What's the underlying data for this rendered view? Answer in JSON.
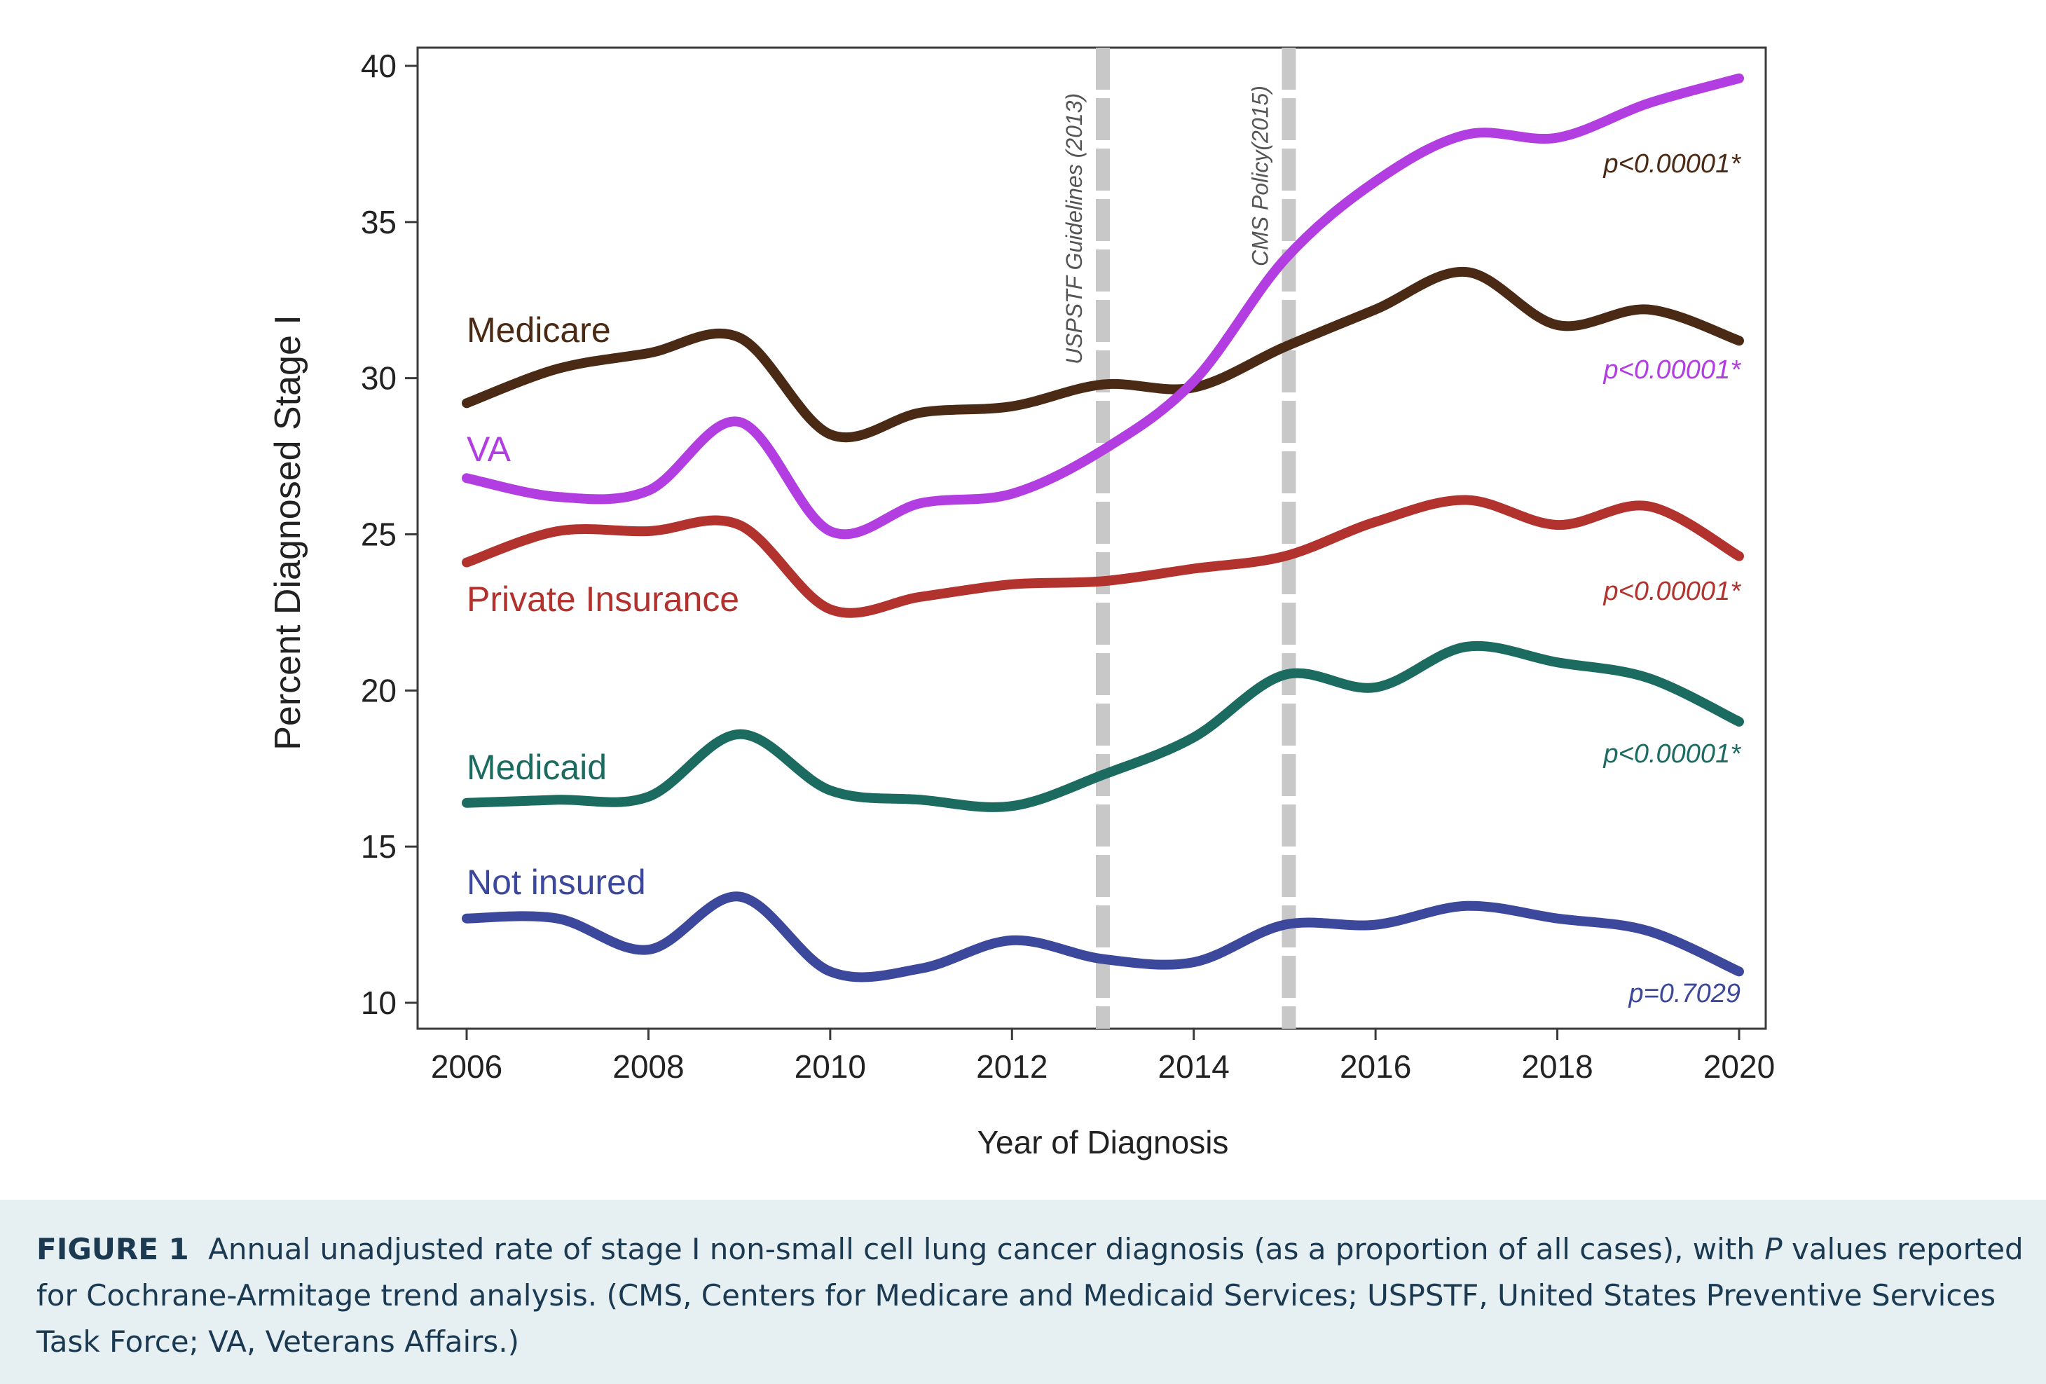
{
  "chart_data": {
    "type": "line",
    "xlabel": "Year of Diagnosis",
    "ylabel": "Percent Diagnosed Stage I",
    "xlim": [
      2006,
      2020
    ],
    "ylim": [
      10,
      40
    ],
    "x_ticks": [
      "2006",
      "2008",
      "2010",
      "2012",
      "2014",
      "2016",
      "2018",
      "2020"
    ],
    "y_ticks": [
      "10",
      "15",
      "20",
      "25",
      "30",
      "35",
      "40"
    ],
    "grid": false,
    "x": [
      2006,
      2007,
      2008,
      2009,
      2010,
      2011,
      2012,
      2013,
      2014,
      2015,
      2016,
      2017,
      2018,
      2019,
      2020
    ],
    "series": [
      {
        "name": "Medicare",
        "color": "#4a2a14",
        "p_label": "p<0.00001*",
        "values": [
          29.2,
          30.3,
          30.8,
          31.3,
          28.2,
          28.9,
          29.1,
          29.8,
          29.7,
          31.0,
          32.2,
          33.4,
          31.7,
          32.2,
          31.2
        ]
      },
      {
        "name": "VA",
        "color": "#b23de0",
        "p_label": "p<0.00001*",
        "values": [
          26.8,
          26.2,
          26.4,
          28.6,
          25.1,
          26.0,
          26.3,
          27.7,
          29.9,
          33.8,
          36.3,
          37.8,
          37.7,
          38.8,
          39.6
        ]
      },
      {
        "name": "Private Insurance",
        "color": "#b2322e",
        "p_label": "p<0.00001*",
        "values": [
          24.1,
          25.1,
          25.1,
          25.3,
          22.6,
          23.0,
          23.4,
          23.5,
          23.9,
          24.3,
          25.4,
          26.1,
          25.3,
          25.9,
          24.3
        ]
      },
      {
        "name": "Medicaid",
        "color": "#1b6b61",
        "p_label": "p<0.00001*",
        "values": [
          16.4,
          16.5,
          16.6,
          18.6,
          16.8,
          16.5,
          16.3,
          17.3,
          18.5,
          20.5,
          20.1,
          21.4,
          20.9,
          20.4,
          19.0
        ]
      },
      {
        "name": "Not insured",
        "color": "#3c489b",
        "p_label": "p=0.7029",
        "values": [
          12.7,
          12.7,
          11.7,
          13.4,
          11.0,
          11.1,
          12.0,
          11.4,
          11.3,
          12.5,
          12.5,
          13.1,
          12.7,
          12.3,
          11.0
        ]
      }
    ],
    "annotations": [
      {
        "x": 2013,
        "text": "USPSTF Guidelines (2013)"
      },
      {
        "x": 2015,
        "text": "CMS Policy(2015)"
      }
    ]
  },
  "caption": {
    "label": "FIGURE 1",
    "text_before_p": "Annual unadjusted rate of stage I non-small cell lung cancer diagnosis (as a proportion of all cases), with",
    "p": "P",
    "text_after_p": "values reported for Cochrane-Armitage trend analysis. (CMS, Centers for Medicare and Medicaid Services; USPSTF, United States Preventive Services Task Force; VA, Veterans Affairs.)"
  }
}
